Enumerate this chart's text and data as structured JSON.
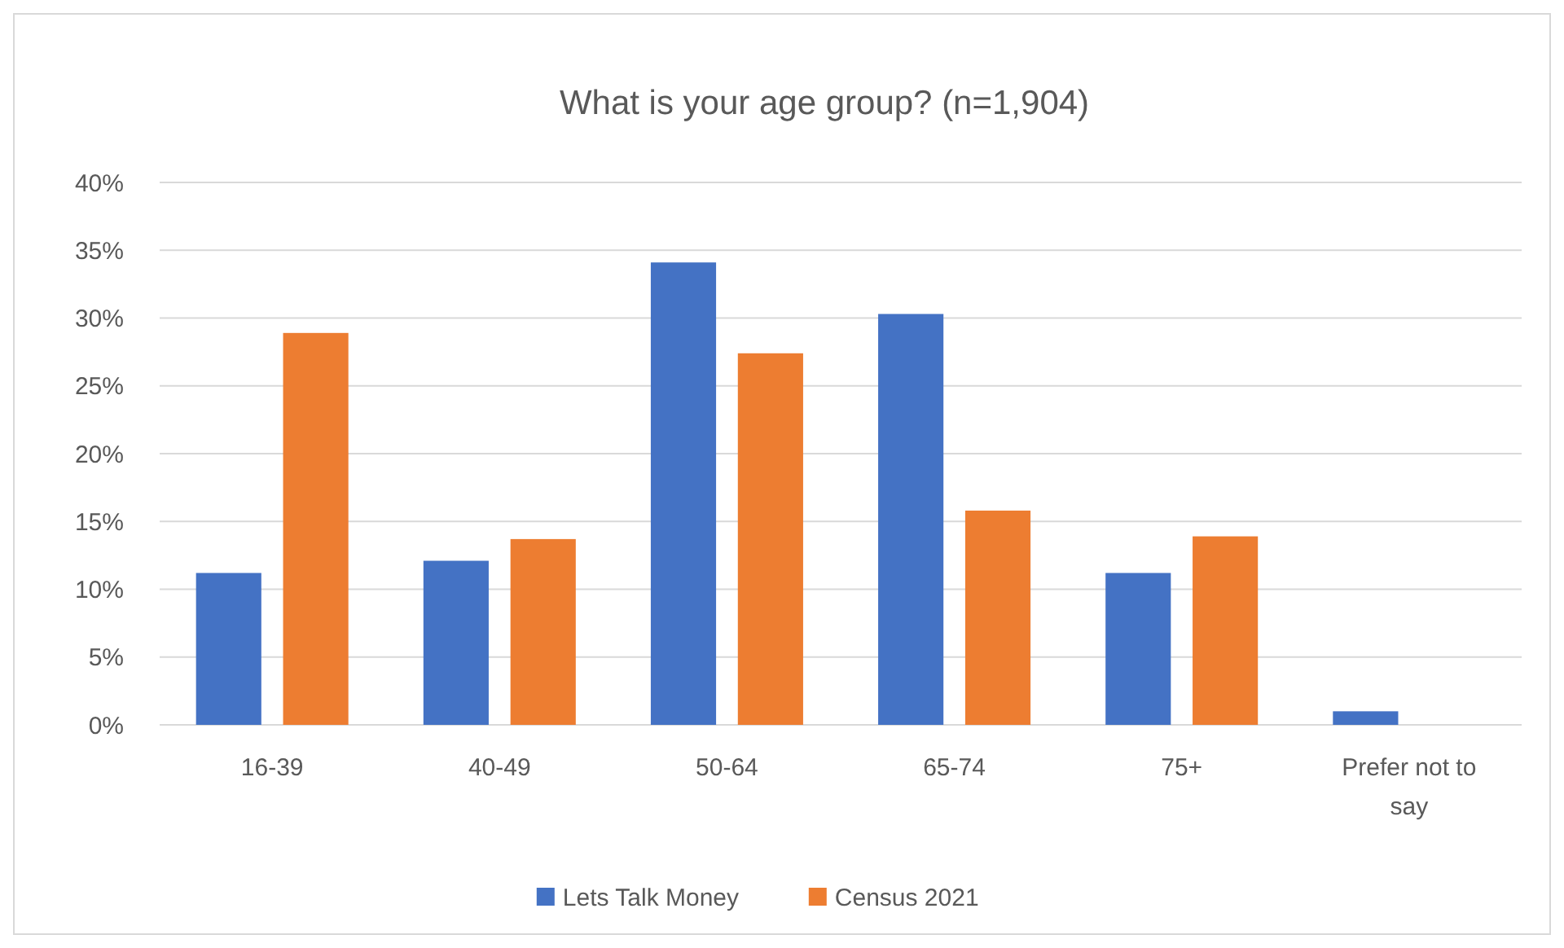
{
  "chart_data": {
    "type": "bar",
    "title": "What is your age group? (n=1,904)",
    "categories": [
      "16-39",
      "40-49",
      "50-64",
      "65-74",
      "75+",
      "Prefer not to say"
    ],
    "series": [
      {
        "name": "Lets Talk Money",
        "color": "#4472c4",
        "values": [
          11.2,
          12.1,
          34.1,
          30.3,
          11.2,
          1.0
        ]
      },
      {
        "name": "Census 2021",
        "color": "#ed7d31",
        "values": [
          28.9,
          13.7,
          27.4,
          15.8,
          13.9,
          null
        ]
      }
    ],
    "ylim": [
      0,
      40
    ],
    "yticks": [
      {
        "value": 0,
        "label": "0%"
      },
      {
        "value": 5,
        "label": "5%"
      },
      {
        "value": 10,
        "label": "10%"
      },
      {
        "value": 15,
        "label": "15%"
      },
      {
        "value": 20,
        "label": "20%"
      },
      {
        "value": 25,
        "label": "25%"
      },
      {
        "value": 30,
        "label": "30%"
      },
      {
        "value": 35,
        "label": "35%"
      },
      {
        "value": 40,
        "label": "40%"
      }
    ],
    "grid": "y",
    "legend": "bottom"
  }
}
